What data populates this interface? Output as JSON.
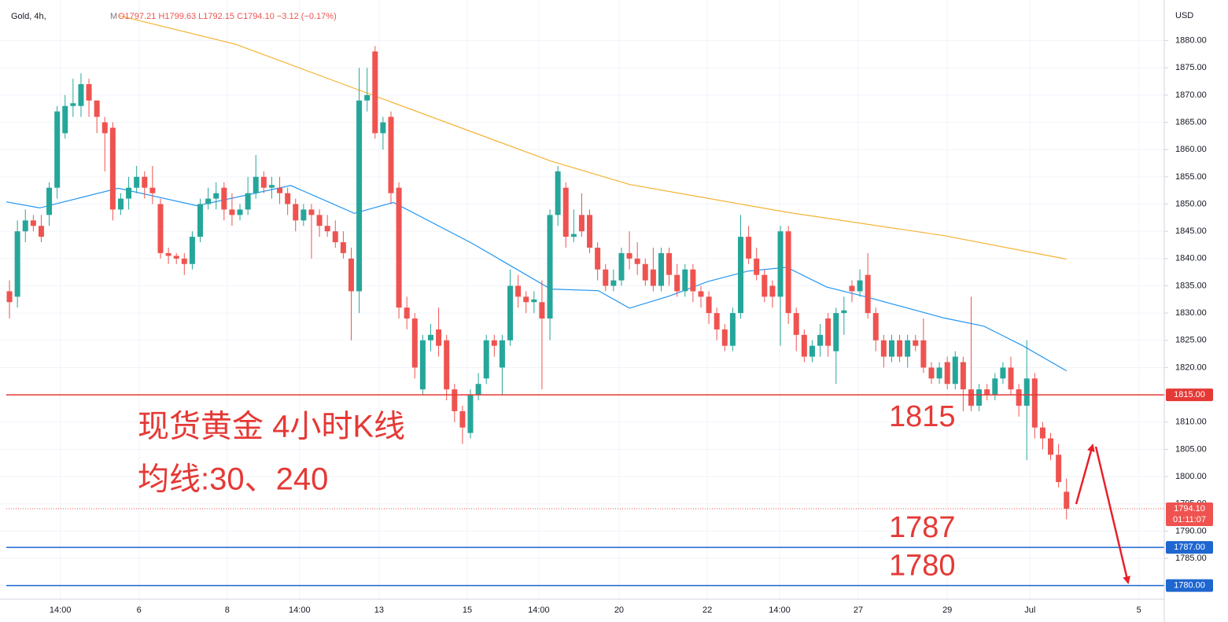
{
  "chart_data": {
    "type": "candlestick",
    "header": {
      "symbol": "Gold, 4h,",
      "marker": "M",
      "open": "O1797.21",
      "high": "H1799.63",
      "low": "L1792.15",
      "close": "C1794.10",
      "change": "−3.12 (−0.17%)"
    },
    "currency": "USD",
    "annotations": [
      "现货黄金 4小时K线",
      "均线:30、240"
    ],
    "up_color": "#26a69a",
    "down_color": "#ef5350",
    "open": [
      1834,
      1833,
      1845,
      1847,
      1846,
      1848,
      1853,
      1863,
      1868,
      1868,
      1872,
      1869,
      1865,
      1864,
      1849,
      1851,
      1853,
      1855,
      1853,
      1850,
      1841,
      1840.5,
      1840,
      1839,
      1844,
      1850,
      1851,
      1853,
      1849,
      1848,
      1849,
      1852,
      1855,
      1853,
      1853,
      1852,
      1850,
      1847,
      1849,
      1848,
      1846,
      1845,
      1843,
      1840,
      1834,
      1869,
      1878,
      1863,
      1866,
      1853,
      1831,
      1829,
      1816,
      1825,
      1827,
      1825,
      1816,
      1812,
      1808,
      1815,
      1818,
      1825,
      1820,
      1825,
      1835,
      1833,
      1832,
      1832,
      1829,
      1848,
      1853,
      1844,
      1848,
      1848,
      1842,
      1838,
      1835,
      1836,
      1841,
      1840,
      1839,
      1838,
      1835,
      1841,
      1837,
      1834,
      1838,
      1834,
      1833,
      1830,
      1827,
      1824,
      1830,
      1844,
      1840,
      1837,
      1835,
      1833,
      1845,
      1830,
      1826,
      1822,
      1824,
      1829,
      1823,
      1830,
      1835,
      1834,
      1837,
      1830,
      1825,
      1822,
      1825,
      1822,
      1825,
      1825,
      1820,
      1818,
      1821,
      1817,
      1821,
      1816,
      1813,
      1816,
      1815,
      1818,
      1820,
      1816,
      1813,
      1818,
      1809,
      1807,
      1804,
      1797.21
    ],
    "high": [
      1836,
      1847,
      1849,
      1848,
      1848,
      1854,
      1868,
      1870,
      1873,
      1874,
      1873,
      1869,
      1866,
      1865,
      1852,
      1855,
      1857,
      1856,
      1857,
      1851,
      1842,
      1841,
      1841,
      1845,
      1851,
      1853,
      1854,
      1854,
      1852,
      1850,
      1855,
      1859,
      1856,
      1855,
      1855,
      1853,
      1851,
      1850,
      1850,
      1849,
      1848,
      1847,
      1845,
      1842,
      1875,
      1875,
      1879,
      1866,
      1867,
      1854,
      1833,
      1830,
      1826,
      1828,
      1831,
      1826,
      1817,
      1813,
      1816,
      1819,
      1826,
      1826,
      1826,
      1838,
      1837,
      1834,
      1834,
      1836,
      1849,
      1857,
      1854,
      1849,
      1852,
      1849,
      1843,
      1839,
      1838,
      1842,
      1845,
      1843,
      1840,
      1842,
      1842,
      1842,
      1839,
      1839,
      1839,
      1835,
      1834,
      1831,
      1828,
      1831,
      1848,
      1846,
      1842,
      1838,
      1836,
      1846,
      1846,
      1831,
      1827,
      1825,
      1828,
      1830,
      1831,
      1833,
      1836,
      1838,
      1841,
      1831,
      1826,
      1826,
      1826,
      1826,
      1826,
      1829,
      1821,
      1821,
      1822,
      1823,
      1822,
      1833,
      1817,
      1817,
      1819,
      1821,
      1822,
      1817,
      1825,
      1819,
      1810,
      1808,
      1806,
      1799.63
    ],
    "low": [
      1829,
      1831,
      1843,
      1845,
      1843,
      1846,
      1851,
      1862,
      1866,
      1866,
      1866,
      1863,
      1856,
      1847,
      1848,
      1849,
      1852,
      1851,
      1850,
      1840,
      1839,
      1839,
      1837,
      1838,
      1843,
      1849,
      1849,
      1847,
      1846,
      1847,
      1848,
      1851,
      1852,
      1851,
      1850,
      1848,
      1845,
      1846,
      1840,
      1844,
      1844,
      1842,
      1840,
      1825,
      1830,
      1867,
      1862,
      1860,
      1850,
      1829,
      1827,
      1818,
      1815,
      1823,
      1822,
      1814,
      1810,
      1806,
      1807,
      1814,
      1817,
      1822,
      1815,
      1824,
      1831,
      1830,
      1830,
      1816,
      1825,
      1846,
      1842,
      1843,
      1844,
      1841,
      1836,
      1834,
      1834,
      1835,
      1838,
      1837,
      1835,
      1834,
      1834,
      1835,
      1833,
      1833,
      1832,
      1831,
      1828,
      1825,
      1823,
      1823,
      1829,
      1839,
      1836,
      1832,
      1831,
      1824,
      1828,
      1823,
      1821,
      1821,
      1822,
      1822,
      1817,
      1826,
      1832,
      1833,
      1829,
      1823,
      1820,
      1821,
      1821,
      1820,
      1823,
      1819,
      1817,
      1817,
      1816,
      1816,
      1812,
      1812,
      1812,
      1814,
      1814,
      1817,
      1815,
      1811,
      1803,
      1807,
      1805,
      1803,
      1798,
      1792.15
    ],
    "close": [
      1832,
      1845,
      1847,
      1846,
      1844,
      1853,
      1867,
      1868,
      1868.5,
      1872,
      1869,
      1866,
      1863,
      1849,
      1851,
      1853,
      1855,
      1853,
      1852,
      1841,
      1840.5,
      1840,
      1839,
      1844,
      1850,
      1851,
      1852,
      1849,
      1848,
      1849,
      1852,
      1855,
      1853,
      1853.5,
      1852,
      1850,
      1847,
      1849,
      1848,
      1846,
      1845,
      1843,
      1841,
      1834,
      1869,
      1870,
      1863,
      1865,
      1852,
      1831,
      1829,
      1820,
      1825,
      1826,
      1824,
      1816,
      1812,
      1809,
      1815,
      1817,
      1825,
      1824,
      1825,
      1835,
      1833,
      1832,
      1832.5,
      1829,
      1848,
      1856,
      1844,
      1844.5,
      1845,
      1842,
      1838,
      1835,
      1836,
      1841,
      1840,
      1839,
      1836,
      1835,
      1841,
      1837,
      1834,
      1838,
      1834,
      1833,
      1830,
      1827,
      1824,
      1830,
      1844,
      1840,
      1837,
      1833,
      1833,
      1845,
      1830,
      1826,
      1822,
      1824,
      1826,
      1824,
      1830,
      1830.5,
      1834,
      1836,
      1830,
      1825,
      1822,
      1825,
      1822,
      1825,
      1824,
      1820,
      1818,
      1820,
      1817,
      1822,
      1816,
      1813,
      1816,
      1815,
      1818,
      1820,
      1816,
      1813,
      1818,
      1809,
      1807,
      1804,
      1799,
      1794.1
    ],
    "ma_lines": [
      {
        "color": "#f5b335",
        "x": [
          13.7,
          28.5,
          45.3,
          68.1,
          78,
          97.8,
          117.6,
          133
        ],
        "values": [
          1884.6,
          1879.3,
          1870.2,
          1857.9,
          1853.6,
          1848.5,
          1844.2,
          1839.9
        ]
      },
      {
        "color": "#2196f3",
        "x": [
          -0.4,
          3.8,
          13.7,
          23.6,
          35.4,
          43.4,
          48.3,
          58.2,
          68.1,
          74.1,
          78,
          83,
          87.9,
          92.9,
          97.8,
          102.8,
          107.7,
          117.6,
          122.6,
          127.5,
          133
        ],
        "values": [
          1850.4,
          1849.3,
          1852.9,
          1849.7,
          1853.4,
          1848.3,
          1850.3,
          1842.8,
          1834.4,
          1834.1,
          1830.9,
          1833.1,
          1835.8,
          1837.7,
          1838.4,
          1834.8,
          1833,
          1829.1,
          1827.6,
          1824,
          1819.4
        ]
      }
    ],
    "levels": [
      {
        "value": 1815,
        "label": "1815.00",
        "annotation": "1815",
        "color": "#e53935"
      },
      {
        "value": 1787,
        "label": "1787.00",
        "annotation": "1787",
        "color": "#1e66d0"
      },
      {
        "value": 1780,
        "label": "1780.00",
        "annotation": "1780",
        "color": "#1e66d0"
      }
    ],
    "last_price": {
      "value": 1794.1,
      "label": "1794.10",
      "countdown": "01:11:07",
      "color": "#ef5350"
    },
    "xlim": [
      -0.4,
      145.3
    ],
    "xticks": [
      {
        "value": 6.4,
        "label": "14:00"
      },
      {
        "value": 16.3,
        "label": "6"
      },
      {
        "value": 27.4,
        "label": "8"
      },
      {
        "value": 36.5,
        "label": "14:00"
      },
      {
        "value": 46.5,
        "label": "13"
      },
      {
        "value": 57.6,
        "label": "15"
      },
      {
        "value": 66.6,
        "label": "14:00"
      },
      {
        "value": 76.7,
        "label": "20"
      },
      {
        "value": 87.8,
        "label": "22"
      },
      {
        "value": 96.9,
        "label": "14:00"
      },
      {
        "value": 106.8,
        "label": "27"
      },
      {
        "value": 118,
        "label": "29"
      },
      {
        "value": 128.4,
        "label": "Jul"
      },
      {
        "value": 142.1,
        "label": "5"
      }
    ],
    "ylim": [
      1777.5,
      1886
    ],
    "yticks": [
      {
        "value": 1780,
        "label": "1780.00"
      },
      {
        "value": 1785,
        "label": "1785.00"
      },
      {
        "value": 1790,
        "label": "1790.00"
      },
      {
        "value": 1795,
        "label": "1795.00"
      },
      {
        "value": 1800,
        "label": "1800.00"
      },
      {
        "value": 1805,
        "label": "1805.00"
      },
      {
        "value": 1810,
        "label": "1810.00"
      },
      {
        "value": 1815,
        "label": "1815.00"
      },
      {
        "value": 1820,
        "label": "1820.00"
      },
      {
        "value": 1825,
        "label": "1825.00"
      },
      {
        "value": 1830,
        "label": "1830.00"
      },
      {
        "value": 1835,
        "label": "1835.00"
      },
      {
        "value": 1840,
        "label": "1840.00"
      },
      {
        "value": 1845,
        "label": "1845.00"
      },
      {
        "value": 1850,
        "label": "1850.00"
      },
      {
        "value": 1855,
        "label": "1855.00"
      },
      {
        "value": 1860,
        "label": "1860.00"
      },
      {
        "value": 1865,
        "label": "1865.00"
      },
      {
        "value": 1870,
        "label": "1870.00"
      },
      {
        "value": 1875,
        "label": "1875.00"
      },
      {
        "value": 1880,
        "label": "1880.00"
      }
    ],
    "grid": true
  }
}
